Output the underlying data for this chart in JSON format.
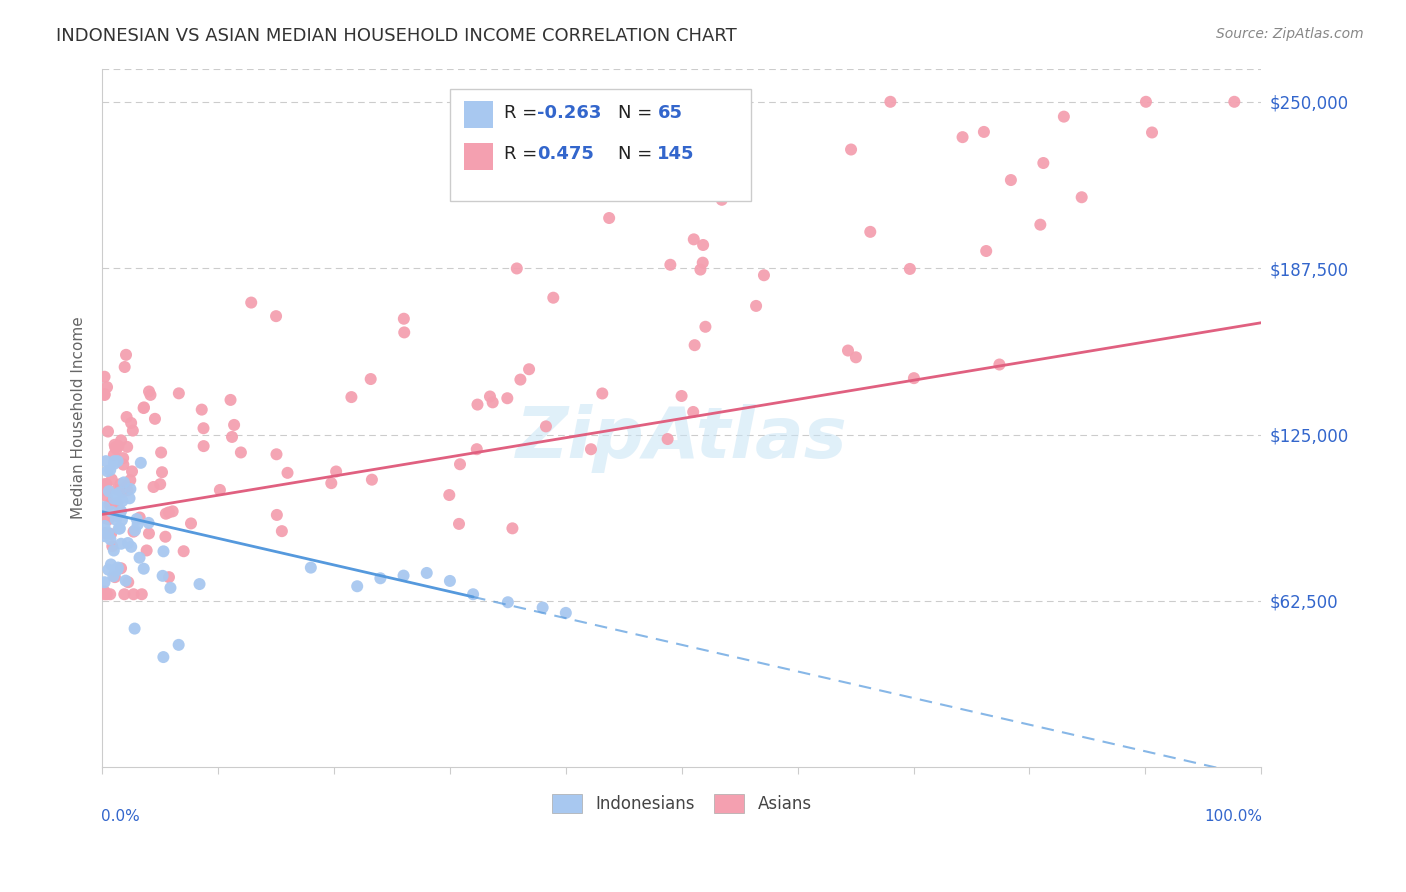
{
  "title": "INDONESIAN VS ASIAN MEDIAN HOUSEHOLD INCOME CORRELATION CHART",
  "source": "Source: ZipAtlas.com",
  "ylabel": "Median Household Income",
  "ytick_labels": [
    "$62,500",
    "$125,000",
    "$187,500",
    "$250,000"
  ],
  "ytick_values": [
    62500,
    125000,
    187500,
    250000
  ],
  "ymin": 0,
  "ymax": 262500,
  "xmin": 0.0,
  "xmax": 1.0,
  "indonesian_color": "#a8c8f0",
  "asian_color": "#f4a0b0",
  "indonesian_line_color": "#5599dd",
  "asian_line_color": "#e06080",
  "label_color": "#3366cc",
  "watermark": "ZipAtlas",
  "legend_text_R": "R =",
  "legend_text_N": "N =",
  "indo_R_val": "-0.263",
  "indo_N_val": "65",
  "asian_R_val": "0.475",
  "asian_N_val": "145",
  "grid_color": "#cccccc",
  "tick_label_color": "#3366cc",
  "axis_label_color": "#666666",
  "title_color": "#333333",
  "source_color": "#888888"
}
